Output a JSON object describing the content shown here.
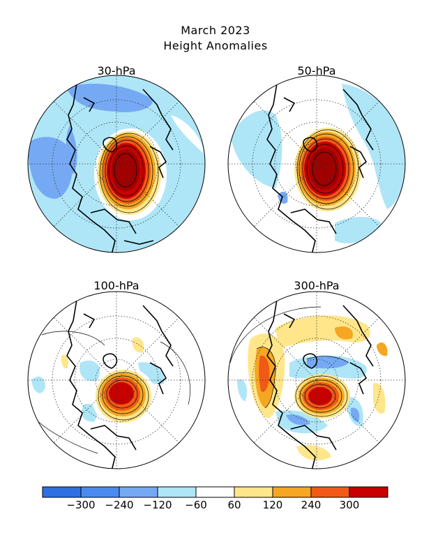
{
  "title": "March 2023",
  "subtitle": "Height Anomalies",
  "panels": [
    {
      "label": "30-hPa"
    },
    {
      "label": "50-hPa"
    },
    {
      "label": "100-hPa"
    },
    {
      "label": "300-hPa"
    }
  ],
  "colorbar": {
    "colors": [
      "#2f6fe0",
      "#4b8bef",
      "#76a9f4",
      "#aee6f7",
      "#ffffff",
      "#ffe68a",
      "#f5a623",
      "#f05a16",
      "#c80000"
    ],
    "labels": [
      "-300",
      "-240",
      "-120",
      "-60",
      "60",
      "120",
      "240",
      "300"
    ]
  },
  "colors": {
    "coast": "#000000",
    "grid": "#333333"
  }
}
